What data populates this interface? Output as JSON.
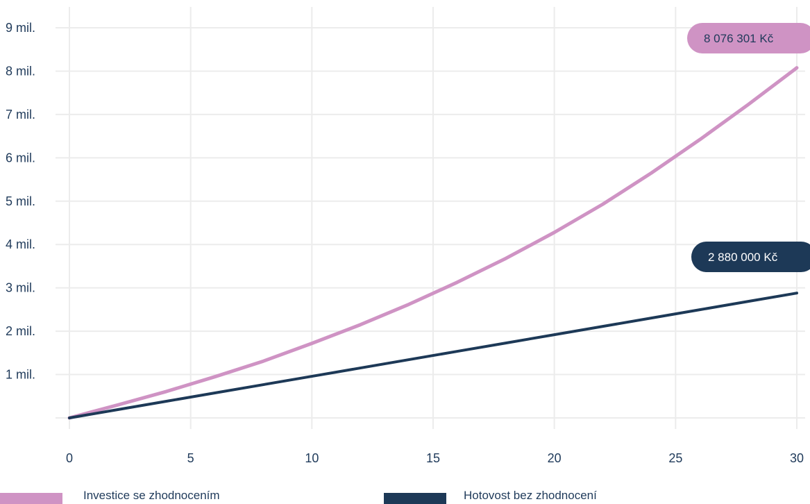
{
  "colors": {
    "invest": "#cf93c4",
    "cash": "#1d3957",
    "grid": "#ececec",
    "text": "#1f3a5a"
  },
  "chart_data": {
    "type": "line",
    "x": [
      0,
      2,
      4,
      6,
      8,
      10,
      12,
      14,
      16,
      18,
      20,
      22,
      24,
      26,
      28,
      30
    ],
    "ylim": [
      0,
      9000000
    ],
    "xlim": [
      0,
      30
    ],
    "y_ticks": [
      {
        "value": 1000000,
        "label": "1 mil."
      },
      {
        "value": 2000000,
        "label": "2 mil."
      },
      {
        "value": 3000000,
        "label": "3 mil."
      },
      {
        "value": 4000000,
        "label": "4 mil."
      },
      {
        "value": 5000000,
        "label": "5 mil."
      },
      {
        "value": 6000000,
        "label": "6 mil."
      },
      {
        "value": 7000000,
        "label": "7 mil."
      },
      {
        "value": 8000000,
        "label": "8 mil."
      },
      {
        "value": 9000000,
        "label": "9 mil."
      }
    ],
    "x_ticks": [
      {
        "value": 0,
        "label": "0"
      },
      {
        "value": 5,
        "label": "5"
      },
      {
        "value": 10,
        "label": "10"
      },
      {
        "value": 15,
        "label": "15"
      },
      {
        "value": 20,
        "label": "20"
      },
      {
        "value": 25,
        "label": "25"
      },
      {
        "value": 30,
        "label": "30"
      }
    ],
    "grid": true,
    "series": [
      {
        "name": "Investice se zhodnocením",
        "color_key": "invest",
        "values": [
          0,
          300000,
          610000,
          950000,
          1310000,
          1720000,
          2150000,
          2620000,
          3130000,
          3680000,
          4280000,
          4930000,
          5650000,
          6420000,
          7230000,
          8076301
        ],
        "end_label": "8 076 301 Kč"
      },
      {
        "name": "Hotovost bez zhodnocení",
        "color_key": "cash",
        "values": [
          0,
          192000,
          384000,
          576000,
          768000,
          960000,
          1152000,
          1344000,
          1536000,
          1728000,
          1920000,
          2112000,
          2304000,
          2496000,
          2688000,
          2880000
        ],
        "end_label": "2 880 000 Kč"
      }
    ],
    "legend": {
      "placement": "bottom",
      "items": [
        {
          "label": "Investice se zhodnocením",
          "color_key": "invest"
        },
        {
          "label": "Hotovost bez zhodnocení",
          "color_key": "cash"
        }
      ]
    }
  }
}
